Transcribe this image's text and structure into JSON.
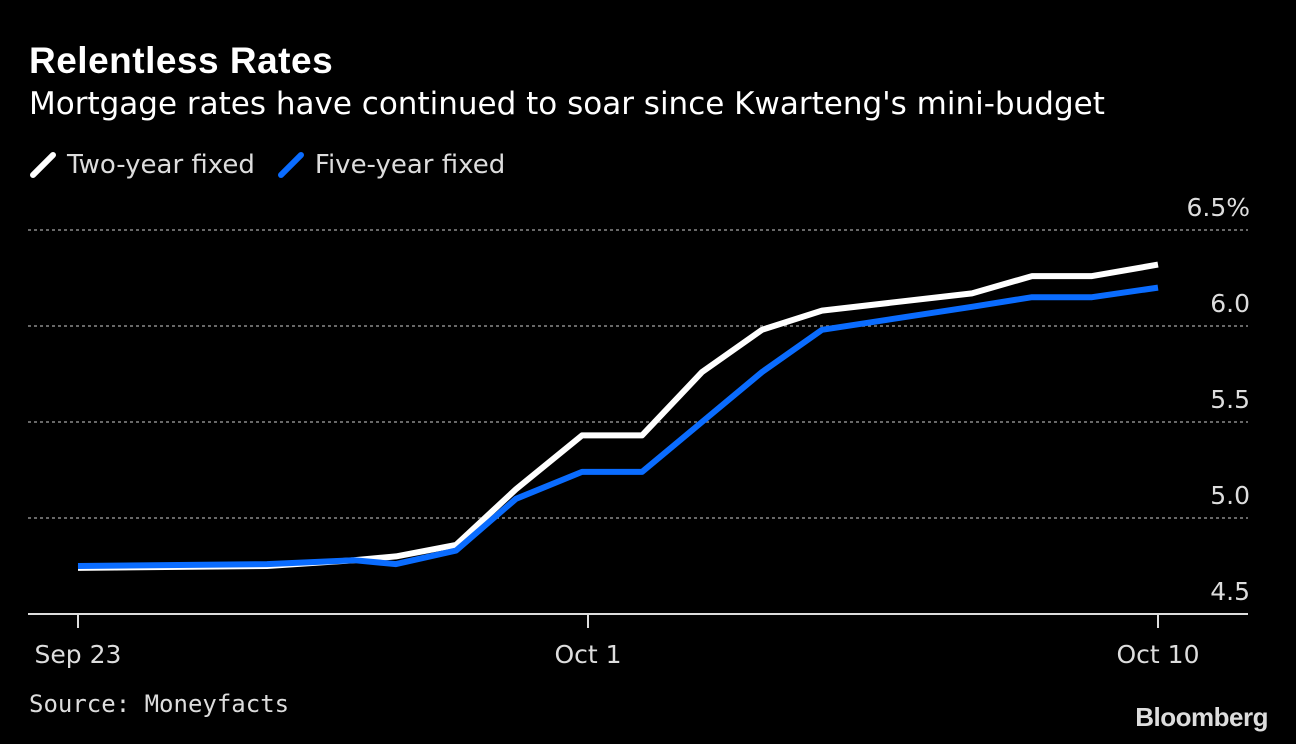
{
  "header": {
    "title": "Relentless Rates",
    "subtitle": "Mortgage rates have continued to soar since Kwarteng's mini-budget"
  },
  "footer": {
    "source": "Source: Moneyfacts",
    "brand": "Bloomberg"
  },
  "chart_data": {
    "type": "line",
    "title": "Relentless Rates",
    "subtitle": "Mortgage rates have continued to soar since Kwarteng's mini-budget",
    "xlabel": "",
    "ylabel": "",
    "ylim": [
      4.5,
      6.5
    ],
    "yticks": [
      {
        "value": 6.5,
        "label": "6.5%"
      },
      {
        "value": 6.0,
        "label": "6.0"
      },
      {
        "value": 5.5,
        "label": "5.5"
      },
      {
        "value": 5.0,
        "label": "5.0"
      },
      {
        "value": 4.5,
        "label": "4.5"
      }
    ],
    "xlim": [
      0,
      18
    ],
    "xticks": [
      {
        "value": 0,
        "label": "Sep 23"
      },
      {
        "value": 8.5,
        "label": "Oct 1"
      },
      {
        "value": 18,
        "label": "Oct 10"
      }
    ],
    "grid": true,
    "legend_position": "top-left",
    "series": [
      {
        "name": "Two-year fixed",
        "color": "#ffffff",
        "x": [
          0,
          3.15,
          4.6,
          5.3,
          6.3,
          7.3,
          8.4,
          9.4,
          10.4,
          11.4,
          12.4,
          14.9,
          15.9,
          16.9,
          18
        ],
        "values": [
          4.74,
          4.75,
          4.78,
          4.8,
          4.86,
          5.15,
          5.43,
          5.43,
          5.76,
          5.98,
          6.08,
          6.17,
          6.26,
          6.26,
          6.32
        ]
      },
      {
        "name": "Five-year fixed",
        "color": "#0a6cff",
        "x": [
          0,
          3.15,
          4.6,
          5.3,
          6.3,
          7.3,
          8.4,
          9.4,
          10.4,
          11.4,
          12.4,
          14.9,
          15.9,
          16.9,
          18
        ],
        "values": [
          4.75,
          4.76,
          4.78,
          4.76,
          4.83,
          5.1,
          5.24,
          5.24,
          5.5,
          5.76,
          5.98,
          6.1,
          6.15,
          6.15,
          6.2
        ]
      }
    ]
  }
}
